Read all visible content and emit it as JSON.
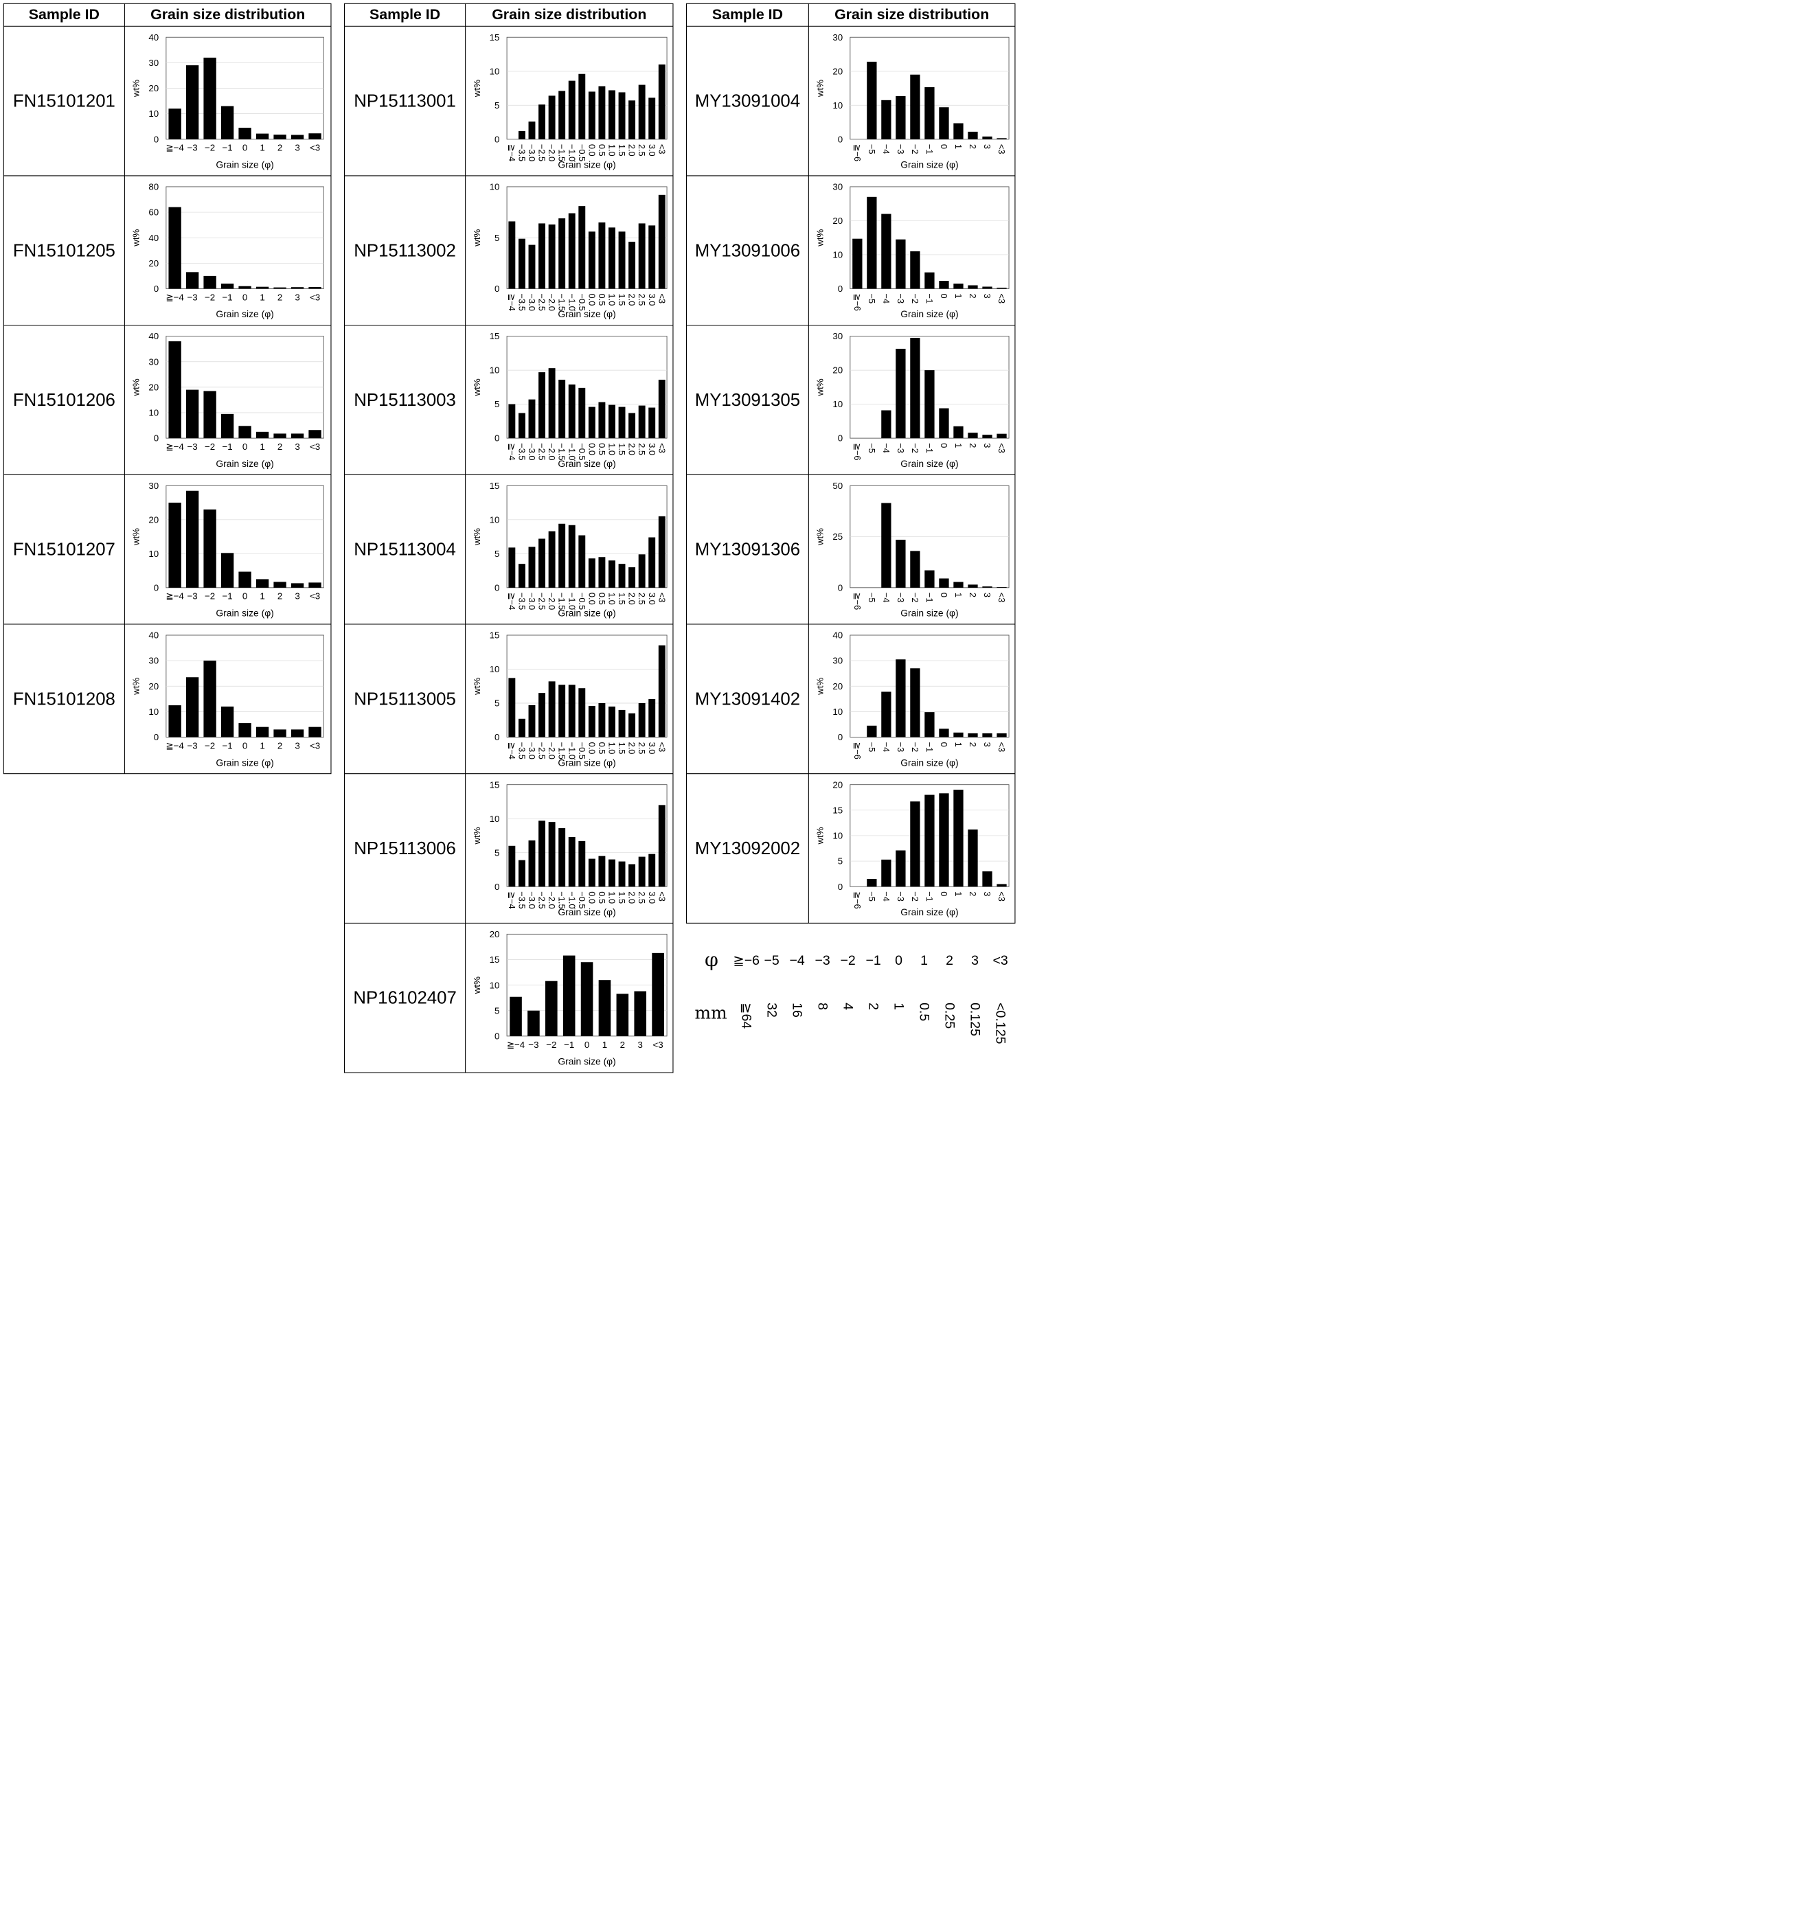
{
  "headers": {
    "sample_id": "Sample ID",
    "distribution": "Grain size distribution"
  },
  "axis": {
    "ylabel": "wt%",
    "xlabel": "Grain size (φ)"
  },
  "legend": {
    "phi_label": "φ",
    "mm_label": "mm",
    "phi_values": [
      "≧−6",
      "−5",
      "−4",
      "−3",
      "−2",
      "−1",
      "0",
      "1",
      "2",
      "3",
      "<3"
    ],
    "mm_values": [
      "≧64",
      "32",
      "16",
      "8",
      "4",
      "2",
      "1",
      "0.5",
      "0.25",
      "0.125",
      "<0.125"
    ]
  },
  "chart_data": [
    {
      "type": "bar",
      "sample_id": "FN15101201",
      "ylabel": "wt%",
      "xlabel": "Grain size (φ)",
      "ylim": [
        0,
        40
      ],
      "yticks": [
        0,
        10,
        20,
        30,
        40
      ],
      "categories": [
        "≧−4",
        "−3",
        "−2",
        "−1",
        "0",
        "1",
        "2",
        "3",
        "<3"
      ],
      "values": [
        12,
        29,
        32,
        13,
        4.5,
        2.2,
        1.8,
        1.7,
        2.3
      ]
    },
    {
      "type": "bar",
      "sample_id": "FN15101205",
      "ylabel": "wt%",
      "xlabel": "Grain size (φ)",
      "ylim": [
        0,
        80
      ],
      "yticks": [
        0,
        20,
        40,
        60,
        80
      ],
      "categories": [
        "≧−4",
        "−3",
        "−2",
        "−1",
        "0",
        "1",
        "2",
        "3",
        "<3"
      ],
      "values": [
        64,
        13,
        10,
        4,
        2,
        1.5,
        1,
        1.2,
        1.3
      ]
    },
    {
      "type": "bar",
      "sample_id": "FN15101206",
      "ylabel": "wt%",
      "xlabel": "Grain size (φ)",
      "ylim": [
        0,
        40
      ],
      "yticks": [
        0,
        10,
        20,
        30,
        40
      ],
      "categories": [
        "≧−4",
        "−3",
        "−2",
        "−1",
        "0",
        "1",
        "2",
        "3",
        "<3"
      ],
      "values": [
        38,
        19,
        18.5,
        9.5,
        4.8,
        2.5,
        1.8,
        1.8,
        3.2
      ]
    },
    {
      "type": "bar",
      "sample_id": "FN15101207",
      "ylabel": "wt%",
      "xlabel": "Grain size (φ)",
      "ylim": [
        0,
        30
      ],
      "yticks": [
        0,
        10,
        20,
        30
      ],
      "categories": [
        "≧−4",
        "−3",
        "−2",
        "−1",
        "0",
        "1",
        "2",
        "3",
        "<3"
      ],
      "values": [
        25,
        28.5,
        23,
        10.2,
        4.7,
        2.5,
        1.7,
        1.3,
        1.5
      ]
    },
    {
      "type": "bar",
      "sample_id": "FN15101208",
      "ylabel": "wt%",
      "xlabel": "Grain size (φ)",
      "ylim": [
        0,
        40
      ],
      "yticks": [
        0,
        10,
        20,
        30,
        40
      ],
      "categories": [
        "≧−4",
        "−3",
        "−2",
        "−1",
        "0",
        "1",
        "2",
        "3",
        "<3"
      ],
      "values": [
        12.5,
        23.5,
        30,
        12,
        5.5,
        4,
        3,
        3,
        4
      ]
    },
    {
      "type": "bar",
      "sample_id": "NP15113001",
      "ylabel": "wt%",
      "xlabel": "Grain size (φ)",
      "ylim": [
        0,
        15
      ],
      "yticks": [
        0,
        5,
        10,
        15
      ],
      "categories": [
        "≧−4",
        "−3.5",
        "−3.0",
        "−2.5",
        "−2.0",
        "−1.5",
        "−1.0",
        "−0.5",
        "0.0",
        "0.5",
        "1.0",
        "1.5",
        "2.0",
        "2.5",
        "3.0",
        "<3"
      ],
      "values": [
        0,
        1.2,
        2.6,
        5.1,
        6.4,
        7.1,
        8.6,
        9.6,
        7,
        7.8,
        7.2,
        6.9,
        5.7,
        8,
        6.1,
        11
      ]
    },
    {
      "type": "bar",
      "sample_id": "NP15113002",
      "ylabel": "wt%",
      "xlabel": "Grain size (φ)",
      "ylim": [
        0,
        10
      ],
      "yticks": [
        0,
        5,
        10
      ],
      "categories": [
        "≧−4",
        "−3.5",
        "−3.0",
        "−2.5",
        "−2.0",
        "−1.5",
        "−1.0",
        "−0.5",
        "0.0",
        "0.5",
        "1.0",
        "1.5",
        "2.0",
        "2.5",
        "3.0",
        "<3"
      ],
      "values": [
        6.6,
        4.9,
        4.3,
        6.4,
        6.3,
        6.9,
        7.4,
        8.1,
        5.6,
        6.5,
        6,
        5.6,
        4.6,
        6.4,
        6.2,
        9.2
      ]
    },
    {
      "type": "bar",
      "sample_id": "NP15113003",
      "ylabel": "wt%",
      "xlabel": "Grain size (φ)",
      "ylim": [
        0,
        15
      ],
      "yticks": [
        0,
        5,
        10,
        15
      ],
      "categories": [
        "≧−4",
        "−3.5",
        "−3.0",
        "−2.5",
        "−2.0",
        "−1.5",
        "−1.0",
        "−0.5",
        "0.0",
        "0.5",
        "1.0",
        "1.5",
        "2.0",
        "2.5",
        "3.0",
        "<3"
      ],
      "values": [
        5,
        3.7,
        5.7,
        9.7,
        10.3,
        8.6,
        7.9,
        7.4,
        4.6,
        5.3,
        4.9,
        4.6,
        3.7,
        4.8,
        4.5,
        8.6
      ]
    },
    {
      "type": "bar",
      "sample_id": "NP15113004",
      "ylabel": "wt%",
      "xlabel": "Grain size (φ)",
      "ylim": [
        0,
        15
      ],
      "yticks": [
        0,
        5,
        10,
        15
      ],
      "categories": [
        "≧−4",
        "−3.5",
        "−3.0",
        "−2.5",
        "−2.0",
        "−1.5",
        "−1.0",
        "−0.5",
        "0.0",
        "0.5",
        "1.0",
        "1.5",
        "2.0",
        "2.5",
        "3.0",
        "<3"
      ],
      "values": [
        5.9,
        3.5,
        6,
        7.2,
        8.3,
        9.4,
        9.2,
        7.7,
        4.3,
        4.5,
        4,
        3.5,
        3,
        4.9,
        7.4,
        10.5
      ]
    },
    {
      "type": "bar",
      "sample_id": "NP15113005",
      "ylabel": "wt%",
      "xlabel": "Grain size (φ)",
      "ylim": [
        0,
        15
      ],
      "yticks": [
        0,
        5,
        10,
        15
      ],
      "categories": [
        "≧−4",
        "−3.5",
        "−3.0",
        "−2.5",
        "−2.0",
        "−1.5",
        "−1.0",
        "−0.5",
        "0.0",
        "0.5",
        "1.0",
        "1.5",
        "2.0",
        "2.5",
        "3.0",
        "<3"
      ],
      "values": [
        8.7,
        2.7,
        4.7,
        6.5,
        8.2,
        7.7,
        7.7,
        7.2,
        4.6,
        5,
        4.5,
        4,
        3.5,
        5,
        5.6,
        13.5
      ]
    },
    {
      "type": "bar",
      "sample_id": "NP15113006",
      "ylabel": "wt%",
      "xlabel": "Grain size (φ)",
      "ylim": [
        0,
        15
      ],
      "yticks": [
        0,
        5,
        10,
        15
      ],
      "categories": [
        "≧−4",
        "−3.5",
        "−3.0",
        "−2.5",
        "−2.0",
        "−1.5",
        "−1.0",
        "−0.5",
        "0.0",
        "0.5",
        "1.0",
        "1.5",
        "2.0",
        "2.5",
        "3.0",
        "<3"
      ],
      "values": [
        6,
        3.9,
        6.8,
        9.7,
        9.5,
        8.6,
        7.3,
        6.7,
        4.1,
        4.5,
        4,
        3.7,
        3.3,
        4.4,
        4.8,
        12
      ]
    },
    {
      "type": "bar",
      "sample_id": "NP16102407",
      "ylabel": "wt%",
      "xlabel": "Grain size (φ)",
      "ylim": [
        0,
        20
      ],
      "yticks": [
        0,
        5,
        10,
        15,
        20
      ],
      "categories": [
        "≧−4",
        "−3",
        "−2",
        "−1",
        "0",
        "1",
        "2",
        "3",
        "<3"
      ],
      "values": [
        7.7,
        5,
        10.8,
        15.8,
        14.5,
        11,
        8.3,
        8.8,
        16.3
      ]
    },
    {
      "type": "bar",
      "sample_id": "MY13091004",
      "ylabel": "wt%",
      "xlabel": "Grain size (φ)",
      "ylim": [
        0,
        30
      ],
      "yticks": [
        0,
        10,
        20,
        30
      ],
      "categories": [
        "≧−6",
        "−5",
        "−4",
        "−3",
        "−2",
        "−1",
        "0",
        "1",
        "2",
        "3",
        "<3"
      ],
      "values": [
        0,
        22.8,
        11.5,
        12.7,
        19,
        15.3,
        9.4,
        4.7,
        2.2,
        0.8,
        0.3
      ]
    },
    {
      "type": "bar",
      "sample_id": "MY13091006",
      "ylabel": "wt%",
      "xlabel": "Grain size (φ)",
      "ylim": [
        0,
        30
      ],
      "yticks": [
        0,
        10,
        20,
        30
      ],
      "categories": [
        "≧−6",
        "−5",
        "−4",
        "−3",
        "−2",
        "−1",
        "0",
        "1",
        "2",
        "3",
        "<3"
      ],
      "values": [
        14.7,
        27,
        22,
        14.5,
        11,
        4.8,
        2.3,
        1.5,
        1,
        0.6,
        0.3
      ]
    },
    {
      "type": "bar",
      "sample_id": "MY13091305",
      "ylabel": "wt%",
      "xlabel": "Grain size (φ)",
      "ylim": [
        0,
        30
      ],
      "yticks": [
        0,
        10,
        20,
        30
      ],
      "categories": [
        "≧−6",
        "−5",
        "−4",
        "−3",
        "−2",
        "−1",
        "0",
        "1",
        "2",
        "3",
        "<3"
      ],
      "values": [
        0,
        0,
        8.2,
        26.3,
        29.5,
        20,
        8.8,
        3.5,
        1.6,
        1,
        1.3
      ]
    },
    {
      "type": "bar",
      "sample_id": "MY13091306",
      "ylabel": "wt%",
      "xlabel": "Grain size (φ)",
      "ylim": [
        0,
        50
      ],
      "yticks": [
        0,
        25,
        50
      ],
      "categories": [
        "≧−6",
        "−5",
        "−4",
        "−3",
        "−2",
        "−1",
        "0",
        "1",
        "2",
        "3",
        "<3"
      ],
      "values": [
        0,
        0,
        41.5,
        23.5,
        18,
        8.5,
        4.5,
        2.8,
        1.5,
        0.6,
        0.3
      ]
    },
    {
      "type": "bar",
      "sample_id": "MY13091402",
      "ylabel": "wt%",
      "xlabel": "Grain size (φ)",
      "ylim": [
        0,
        40
      ],
      "yticks": [
        0,
        10,
        20,
        30,
        40
      ],
      "categories": [
        "≧−6",
        "−5",
        "−4",
        "−3",
        "−2",
        "−1",
        "0",
        "1",
        "2",
        "3",
        "<3"
      ],
      "values": [
        0,
        4.5,
        17.8,
        30.5,
        27,
        9.8,
        3.3,
        1.8,
        1.5,
        1.5,
        1.5
      ]
    },
    {
      "type": "bar",
      "sample_id": "MY13092002",
      "ylabel": "wt%",
      "xlabel": "Grain size (φ)",
      "ylim": [
        0,
        20
      ],
      "yticks": [
        0,
        5,
        10,
        15,
        20
      ],
      "categories": [
        "≧−6",
        "−5",
        "−4",
        "−3",
        "−2",
        "−1",
        "0",
        "1",
        "2",
        "3",
        "<3"
      ],
      "values": [
        0,
        1.5,
        5.3,
        7.1,
        16.7,
        18,
        18.3,
        19,
        11.2,
        3,
        0.5
      ]
    }
  ]
}
